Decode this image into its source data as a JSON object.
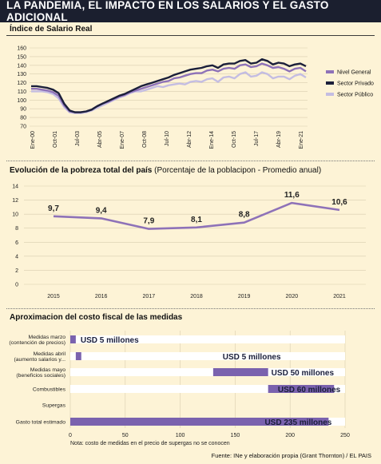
{
  "header": {
    "title": "LA PANDEMIA, EL IMPACTO EN LOS SALARIOS Y EL GASTO ADICIONAL"
  },
  "colors": {
    "general": "#8e72b8",
    "privado": "#1b1f3a",
    "publico": "#c4bde2",
    "bar": "#7a62ae",
    "title_bg": "#1b1f2f"
  },
  "chart_data": [
    {
      "type": "line",
      "title": "Índice de Salario Real",
      "ylim": [
        70,
        160
      ],
      "yticks": [
        70,
        80,
        90,
        100,
        110,
        120,
        130,
        140,
        150,
        160
      ],
      "x_labels": [
        "Ene-00",
        "Oct-01",
        "Jul-03",
        "Abr-05",
        "Ene-07",
        "Oct-08",
        "Jul-10",
        "Abr-12",
        "Ene-14",
        "Oct-15",
        "Jul-17",
        "Abr-19",
        "Ene-21"
      ],
      "grid": true,
      "legend_position": "right",
      "series": [
        {
          "name": "Nivel General",
          "values": [
            113,
            113,
            112,
            111,
            109,
            105,
            94,
            87,
            86,
            86,
            87,
            89,
            93,
            96,
            98,
            101,
            104,
            106,
            109,
            111,
            113,
            115,
            117,
            119,
            121,
            122,
            125,
            126,
            128,
            130,
            131,
            131,
            134,
            135,
            133,
            136,
            137,
            136,
            140,
            141,
            138,
            139,
            142,
            140,
            137,
            138,
            136,
            133,
            136,
            137,
            133
          ]
        },
        {
          "name": "Sector Privado",
          "values": [
            116,
            116,
            115,
            114,
            112,
            108,
            96,
            88,
            86,
            86,
            87,
            89,
            93,
            96,
            99,
            102,
            105,
            107,
            110,
            113,
            116,
            118,
            120,
            122,
            124,
            126,
            129,
            131,
            133,
            135,
            136,
            137,
            139,
            140,
            137,
            141,
            142,
            142,
            145,
            146,
            142,
            143,
            147,
            145,
            141,
            143,
            142,
            139,
            141,
            142,
            139
          ]
        },
        {
          "name": "Sector Público",
          "values": [
            110,
            110,
            110,
            109,
            107,
            102,
            92,
            86,
            85,
            85,
            86,
            88,
            91,
            94,
            97,
            100,
            103,
            105,
            108,
            110,
            110,
            112,
            114,
            116,
            115,
            117,
            118,
            119,
            118,
            121,
            122,
            121,
            124,
            125,
            121,
            126,
            127,
            125,
            130,
            132,
            127,
            128,
            132,
            130,
            125,
            127,
            127,
            124,
            128,
            130,
            126
          ]
        }
      ]
    },
    {
      "type": "line",
      "title": "Evolución de la pobreza total del país",
      "subtitle": "(Porcentaje de la poblacipon - Promedio anual)",
      "categories": [
        "2015",
        "2016",
        "2017",
        "2018",
        "2019",
        "2020",
        "2021"
      ],
      "values": [
        9.7,
        9.4,
        7.9,
        8.1,
        8.8,
        11.6,
        10.6
      ],
      "value_labels": [
        "9,7",
        "9,4",
        "7,9",
        "8,1",
        "8,8",
        "11,6",
        "10,6"
      ],
      "ylim": [
        0,
        14
      ],
      "yticks": [
        0,
        2,
        4,
        6,
        8,
        10,
        12,
        14
      ],
      "grid": true
    },
    {
      "type": "bar",
      "orientation": "horizontal",
      "title": "Aproximacion del costo fiscal de las medidas",
      "xlim": [
        0,
        250
      ],
      "xticks": [
        0,
        50,
        100,
        150,
        200,
        250
      ],
      "note": "Nota: costo de medidas en el precio de supergas no se conocen",
      "categories": [
        {
          "line1": "Medidas marzo",
          "line2": "(contención de precios)"
        },
        {
          "line1": "Medidas abril",
          "line2": "(aumento salarios y..."
        },
        {
          "line1": "Medidas mayo",
          "line2": "(beneficios sociales)"
        },
        {
          "line1": "Combustibles",
          "line2": ""
        },
        {
          "line1": "Supergas",
          "line2": ""
        },
        {
          "line1": "Gasto total estimado",
          "line2": ""
        }
      ],
      "values": [
        5,
        5,
        50,
        60,
        null,
        235
      ],
      "offsets": [
        0,
        5,
        130,
        180,
        null,
        0
      ],
      "value_labels": [
        "USD 5 millones",
        "USD 5 millones",
        "USD 50 millones",
        "USD 60 millones",
        "",
        "USD 235 millones"
      ]
    }
  ],
  "footer": {
    "source": "Fuente: INe y elaboración propia (Grant Thornton) / EL PAIS"
  }
}
